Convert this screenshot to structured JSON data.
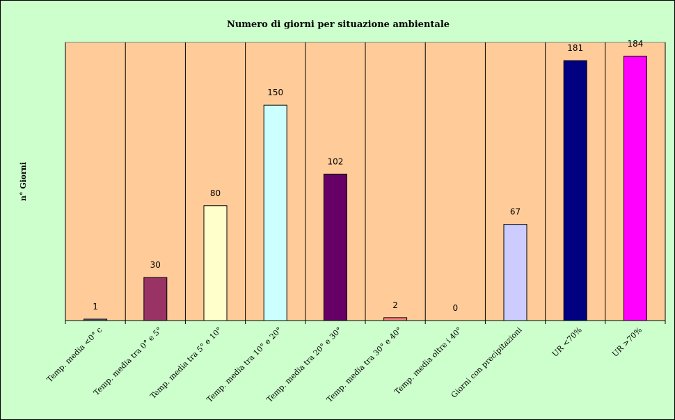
{
  "chart_data": {
    "type": "bar",
    "title": "Numero di giorni per situazione ambientale",
    "ylabel": "n° Giorni",
    "xlabel": "",
    "ylim": [
      0,
      184
    ],
    "grid": false,
    "legend": "none",
    "plot_background": "#ffcc99",
    "categories": [
      "Temp. media <0° c",
      "Temp. media tra 0° e 5°",
      "Temp. media tra 5° e 10°",
      "Temp. media tra 10° e 20°",
      "Temp. media tra 20° e 30°",
      "Temp. media tra 30° e 40°",
      "Temp. media oltre i 40°",
      "Giorni con precipitazioni",
      "UR <70%",
      "UR >70%"
    ],
    "values": [
      1,
      30,
      80,
      150,
      102,
      2,
      0,
      67,
      181,
      184
    ],
    "data_labels": [
      "1",
      "30",
      "80",
      "150",
      "102",
      "2",
      "0",
      "67",
      "181",
      "184"
    ],
    "colors": [
      "#666699",
      "#993366",
      "#ffffcc",
      "#ccffff",
      "#660066",
      "#ff8080",
      "#0066cc",
      "#ccccff",
      "#000080",
      "#ff00ff"
    ]
  }
}
